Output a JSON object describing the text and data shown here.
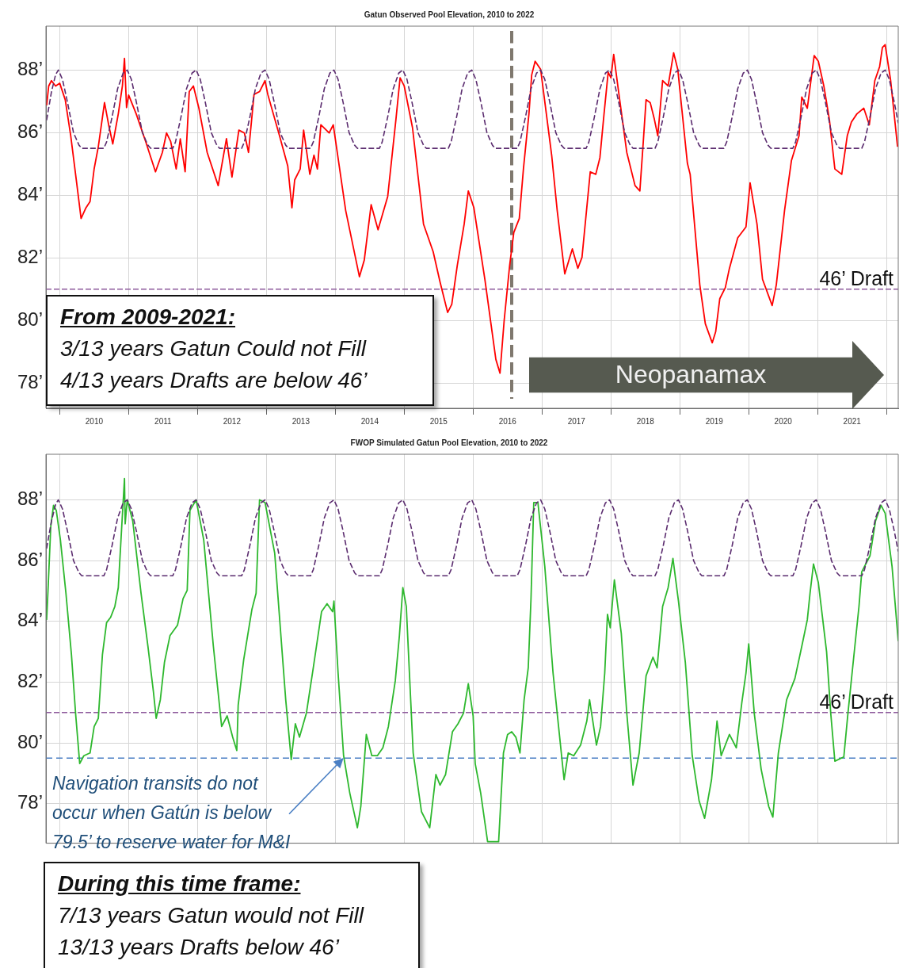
{
  "chart_data": [
    {
      "type": "line",
      "title": "Gatun Observed Pool Elevation, 2010 to 2022",
      "xlim": [
        2009.8,
        2022.17
      ],
      "ylim": [
        77.2,
        89.4
      ],
      "xticks": [
        {
          "value": 2010,
          "label": null
        },
        {
          "value": 2010.5,
          "label": "2010"
        },
        {
          "value": 2011,
          "label": null
        },
        {
          "value": 2011.5,
          "label": "2011"
        },
        {
          "value": 2012,
          "label": null
        },
        {
          "value": 2012.5,
          "label": "2012"
        },
        {
          "value": 2013,
          "label": null
        },
        {
          "value": 2013.5,
          "label": "2013"
        },
        {
          "value": 2014,
          "label": null
        },
        {
          "value": 2014.5,
          "label": "2014"
        },
        {
          "value": 2015,
          "label": null
        },
        {
          "value": 2015.5,
          "label": "2015"
        },
        {
          "value": 2016,
          "label": null
        },
        {
          "value": 2016.5,
          "label": "2016"
        },
        {
          "value": 2017,
          "label": null
        },
        {
          "value": 2017.5,
          "label": "2017"
        },
        {
          "value": 2018,
          "label": null
        },
        {
          "value": 2018.5,
          "label": "2018"
        },
        {
          "value": 2019,
          "label": null
        },
        {
          "value": 2019.5,
          "label": "2019"
        },
        {
          "value": 2020,
          "label": null
        },
        {
          "value": 2020.5,
          "label": "2020"
        },
        {
          "value": 2021,
          "label": null
        },
        {
          "value": 2021.5,
          "label": "2021"
        },
        {
          "value": 2022,
          "label": null
        }
      ],
      "yticks": [
        {
          "value": 78,
          "label": "78’"
        },
        {
          "value": 80,
          "label": "80’"
        },
        {
          "value": 82,
          "label": "82’"
        },
        {
          "value": 84,
          "label": "84’"
        },
        {
          "value": 86,
          "label": "86’"
        },
        {
          "value": 88,
          "label": "88’"
        }
      ],
      "grid": true,
      "legend": false,
      "series": [
        {
          "color": "#5b2c6f",
          "line_style": "dashed",
          "x": [
            2009.81,
            2009.88,
            2009.94,
            2009.98,
            2010.04,
            2010.11,
            2010.2,
            2010.28,
            2010.32,
            2010.64,
            2010.68,
            2010.76,
            2010.84,
            2010.92,
            2010.98,
            2011.04,
            2011.11,
            2011.2,
            2011.28,
            2011.32,
            2011.64,
            2011.68,
            2011.76,
            2011.84,
            2011.92,
            2011.98,
            2012.04,
            2012.11,
            2012.2,
            2012.28,
            2012.32,
            2012.64,
            2012.68,
            2012.76,
            2012.84,
            2012.92,
            2012.98,
            2013.04,
            2013.11,
            2013.2,
            2013.28,
            2013.32,
            2013.64,
            2013.68,
            2013.76,
            2013.84,
            2013.92,
            2013.98,
            2014.04,
            2014.11,
            2014.2,
            2014.28,
            2014.32,
            2014.64,
            2014.68,
            2014.76,
            2014.84,
            2014.92,
            2014.98,
            2015.04,
            2015.11,
            2015.2,
            2015.28,
            2015.32,
            2015.64,
            2015.68,
            2015.76,
            2015.84,
            2015.92,
            2015.98,
            2016.04,
            2016.11,
            2016.2,
            2016.28,
            2016.32,
            2016.64,
            2016.68,
            2016.76,
            2016.84,
            2016.92,
            2016.98,
            2017.04,
            2017.11,
            2017.2,
            2017.28,
            2017.32,
            2017.64,
            2017.68,
            2017.76,
            2017.84,
            2017.92,
            2017.98,
            2018.04,
            2018.11,
            2018.2,
            2018.28,
            2018.32,
            2018.64,
            2018.68,
            2018.76,
            2018.84,
            2018.92,
            2018.98,
            2019.04,
            2019.11,
            2019.2,
            2019.28,
            2019.32,
            2019.64,
            2019.68,
            2019.76,
            2019.84,
            2019.92,
            2019.98,
            2020.04,
            2020.11,
            2020.2,
            2020.28,
            2020.32,
            2020.64,
            2020.68,
            2020.76,
            2020.84,
            2020.92,
            2020.98,
            2021.04,
            2021.11,
            2021.2,
            2021.28,
            2021.32,
            2021.64,
            2021.68,
            2021.76,
            2021.84,
            2021.92,
            2021.98,
            2022.04,
            2022.11,
            2022.17
          ],
          "values": [
            86.4,
            87.3,
            87.85,
            88,
            87.7,
            87,
            86,
            85.6,
            85.5,
            85.5,
            85.7,
            86.5,
            87.4,
            87.9,
            88,
            87.7,
            87,
            86,
            85.6,
            85.5,
            85.5,
            85.7,
            86.5,
            87.4,
            87.9,
            88,
            87.7,
            87,
            86,
            85.6,
            85.5,
            85.5,
            85.7,
            86.5,
            87.4,
            87.9,
            88,
            87.7,
            87,
            86,
            85.6,
            85.5,
            85.5,
            85.7,
            86.5,
            87.4,
            87.9,
            88,
            87.7,
            87,
            86,
            85.6,
            85.5,
            85.5,
            85.7,
            86.5,
            87.4,
            87.9,
            88,
            87.7,
            87,
            86,
            85.6,
            85.5,
            85.5,
            85.7,
            86.5,
            87.4,
            87.9,
            88,
            87.7,
            87,
            86,
            85.6,
            85.5,
            85.5,
            85.7,
            86.5,
            87.4,
            87.9,
            88,
            87.7,
            87,
            86,
            85.6,
            85.5,
            85.5,
            85.7,
            86.5,
            87.4,
            87.9,
            88,
            87.7,
            87,
            86,
            85.6,
            85.5,
            85.5,
            85.7,
            86.5,
            87.4,
            87.9,
            88,
            87.7,
            87,
            86,
            85.6,
            85.5,
            85.5,
            85.7,
            86.5,
            87.4,
            87.9,
            88,
            87.7,
            87,
            86,
            85.6,
            85.5,
            85.5,
            85.7,
            86.5,
            87.4,
            87.9,
            88,
            87.7,
            87,
            86,
            85.6,
            85.5,
            85.5,
            85.7,
            86.5,
            87.4,
            87.9,
            88,
            87.7,
            87,
            86.3
          ]
        },
        {
          "color": "#ff0000",
          "x": [
            2009.81,
            2009.84,
            2009.88,
            2009.94,
            2010.0,
            2010.08,
            2010.16,
            2010.24,
            2010.31,
            2010.38,
            2010.44,
            2010.5,
            2010.56,
            2010.65,
            2010.71,
            2010.77,
            2010.85,
            2010.91,
            2010.94,
            2010.97,
            2011.0,
            2011.11,
            2011.25,
            2011.39,
            2011.49,
            2011.55,
            2011.61,
            2011.69,
            2011.75,
            2011.82,
            2011.88,
            2011.94,
            2012.02,
            2012.14,
            2012.3,
            2012.42,
            2012.5,
            2012.6,
            2012.68,
            2012.74,
            2012.82,
            2012.9,
            2012.98,
            2013.02,
            2013.19,
            2013.31,
            2013.37,
            2013.41,
            2013.49,
            2013.54,
            2013.63,
            2013.69,
            2013.74,
            2013.79,
            2013.91,
            2013.97,
            2014.15,
            2014.35,
            2014.42,
            2014.52,
            2014.62,
            2014.76,
            2014.88,
            2014.94,
            2015.0,
            2015.12,
            2015.28,
            2015.42,
            2015.52,
            2015.63,
            2015.69,
            2015.77,
            2015.87,
            2015.93,
            2016.01,
            2016.17,
            2016.33,
            2016.39,
            2016.45,
            2016.53,
            2016.59,
            2016.67,
            2016.73,
            2016.81,
            2016.85,
            2016.9,
            2016.98,
            2017.14,
            2017.22,
            2017.33,
            2017.44,
            2017.52,
            2017.58,
            2017.7,
            2017.78,
            2017.84,
            2017.9,
            2017.96,
            2018.0,
            2018.04,
            2018.1,
            2018.23,
            2018.35,
            2018.42,
            2018.47,
            2018.51,
            2018.57,
            2018.63,
            2018.68,
            2018.75,
            2018.83,
            2018.91,
            2018.97,
            2019.11,
            2019.15,
            2019.29,
            2019.37,
            2019.47,
            2019.52,
            2019.58,
            2019.66,
            2019.72,
            2019.84,
            2019.96,
            2020.02,
            2020.12,
            2020.2,
            2020.34,
            2020.4,
            2020.52,
            2020.62,
            2020.73,
            2020.77,
            2020.85,
            2020.95,
            2021.01,
            2021.09,
            2021.17,
            2021.25,
            2021.35,
            2021.43,
            2021.49,
            2021.57,
            2021.67,
            2021.75,
            2021.83,
            2021.9,
            2021.94,
            2021.98,
            2022.06,
            2022.16
          ],
          "values": [
            86.87,
            87.49,
            87.66,
            87.49,
            87.58,
            87.05,
            85.9,
            84.5,
            83.26,
            83.6,
            83.8,
            84.85,
            85.55,
            86.96,
            86.25,
            85.64,
            86.6,
            87.5,
            88.37,
            86.8,
            87.2,
            86.6,
            85.7,
            84.75,
            85.37,
            85.99,
            85.72,
            84.84,
            85.8,
            84.75,
            87.31,
            87.49,
            86.78,
            85.37,
            84.31,
            85.81,
            84.58,
            86.08,
            85.99,
            85.37,
            87.22,
            87.31,
            87.66,
            87.22,
            85.9,
            84.93,
            83.6,
            84.49,
            84.84,
            86.08,
            84.67,
            85.28,
            84.84,
            86.25,
            85.99,
            86.25,
            83.52,
            81.4,
            81.93,
            83.7,
            82.9,
            83.96,
            86.43,
            87.75,
            87.49,
            86.16,
            83.08,
            82.2,
            81.23,
            80.26,
            80.52,
            81.76,
            83.08,
            84.14,
            83.61,
            81.32,
            78.76,
            78.32,
            79.99,
            81.76,
            82.81,
            83.26,
            84.84,
            86.6,
            87.84,
            88.28,
            88.02,
            85.28,
            83.52,
            81.49,
            82.29,
            81.67,
            82.02,
            84.75,
            84.67,
            85.2,
            86.6,
            87.93,
            87.75,
            88.5,
            87.49,
            85.37,
            84.31,
            84.14,
            85.72,
            87.05,
            86.96,
            86.43,
            85.9,
            87.66,
            87.49,
            88.55,
            88.02,
            85.02,
            84.67,
            81.14,
            79.9,
            79.29,
            79.64,
            80.7,
            81.05,
            81.67,
            82.64,
            82.99,
            84.4,
            83.08,
            81.32,
            80.48,
            81.14,
            83.52,
            85.11,
            85.9,
            87.14,
            86.78,
            88.46,
            88.28,
            87.49,
            86.43,
            84.84,
            84.67,
            85.9,
            86.34,
            86.6,
            86.78,
            86.25,
            87.66,
            88.11,
            88.72,
            88.81,
            87.66,
            85.55
          ]
        }
      ],
      "ref_lines": [
        {
          "axis": "y",
          "value": 81,
          "label": "46’ Draft",
          "color": "#8e5a9c",
          "line_style": "dashed"
        },
        {
          "axis": "x",
          "value": 2016.56,
          "color": "#7f786e",
          "line_style": "dashed"
        }
      ],
      "annotations": [
        "From 2009-2021:",
        "3/13 years Gatun Could not Fill",
        "4/13 years Drafts are below 46’",
        "Neopanamax"
      ]
    },
    {
      "type": "line",
      "title": "FWOP Simulated Gatun Pool Elevation, 2010 to 2022",
      "xlim": [
        2009.8,
        2022.17
      ],
      "ylim": [
        76.7,
        89.5
      ],
      "xticks": [
        {
          "value": 2010,
          "label": null
        },
        {
          "value": 2011,
          "label": null
        },
        {
          "value": 2012,
          "label": null
        },
        {
          "value": 2013,
          "label": null
        },
        {
          "value": 2014,
          "label": null
        },
        {
          "value": 2015,
          "label": null
        },
        {
          "value": 2016,
          "label": null
        },
        {
          "value": 2017,
          "label": null
        },
        {
          "value": 2018,
          "label": null
        },
        {
          "value": 2019,
          "label": null
        },
        {
          "value": 2020,
          "label": null
        },
        {
          "value": 2021,
          "label": null
        },
        {
          "value": 2022,
          "label": null
        }
      ],
      "yticks": [
        {
          "value": 78,
          "label": "78’"
        },
        {
          "value": 80,
          "label": "80’"
        },
        {
          "value": 82,
          "label": "82’"
        },
        {
          "value": 84,
          "label": "84’"
        },
        {
          "value": 86,
          "label": "86’"
        },
        {
          "value": 88,
          "label": "88’"
        }
      ],
      "tick_labels": "y",
      "grid": true,
      "legend": false,
      "series": [
        {
          "color": "#5b2c6f",
          "line_style": "dashed",
          "x": [
            2009.81,
            2009.88,
            2009.94,
            2009.98,
            2010.04,
            2010.11,
            2010.2,
            2010.28,
            2010.32,
            2010.64,
            2010.68,
            2010.76,
            2010.84,
            2010.92,
            2010.98,
            2011.04,
            2011.11,
            2011.2,
            2011.28,
            2011.32,
            2011.64,
            2011.68,
            2011.76,
            2011.84,
            2011.92,
            2011.98,
            2012.04,
            2012.11,
            2012.2,
            2012.28,
            2012.32,
            2012.64,
            2012.68,
            2012.76,
            2012.84,
            2012.92,
            2012.98,
            2013.04,
            2013.11,
            2013.2,
            2013.28,
            2013.32,
            2013.64,
            2013.68,
            2013.76,
            2013.84,
            2013.92,
            2013.98,
            2014.04,
            2014.11,
            2014.2,
            2014.28,
            2014.32,
            2014.64,
            2014.68,
            2014.76,
            2014.84,
            2014.92,
            2014.98,
            2015.04,
            2015.11,
            2015.2,
            2015.28,
            2015.32,
            2015.64,
            2015.68,
            2015.76,
            2015.84,
            2015.92,
            2015.98,
            2016.04,
            2016.11,
            2016.2,
            2016.28,
            2016.32,
            2016.64,
            2016.68,
            2016.76,
            2016.84,
            2016.92,
            2016.98,
            2017.04,
            2017.11,
            2017.2,
            2017.28,
            2017.32,
            2017.64,
            2017.68,
            2017.76,
            2017.84,
            2017.92,
            2017.98,
            2018.04,
            2018.11,
            2018.2,
            2018.28,
            2018.32,
            2018.64,
            2018.68,
            2018.76,
            2018.84,
            2018.92,
            2018.98,
            2019.04,
            2019.11,
            2019.2,
            2019.28,
            2019.32,
            2019.64,
            2019.68,
            2019.76,
            2019.84,
            2019.92,
            2019.98,
            2020.04,
            2020.11,
            2020.2,
            2020.28,
            2020.32,
            2020.64,
            2020.68,
            2020.76,
            2020.84,
            2020.92,
            2020.98,
            2021.04,
            2021.11,
            2021.2,
            2021.28,
            2021.32,
            2021.64,
            2021.68,
            2021.76,
            2021.84,
            2021.92,
            2021.98,
            2022.04,
            2022.11,
            2022.17
          ],
          "values": [
            86.4,
            87.3,
            87.85,
            88,
            87.7,
            87,
            86,
            85.6,
            85.5,
            85.5,
            85.7,
            86.5,
            87.4,
            87.9,
            88,
            87.7,
            87,
            86,
            85.6,
            85.5,
            85.5,
            85.7,
            86.5,
            87.4,
            87.9,
            88,
            87.7,
            87,
            86,
            85.6,
            85.5,
            85.5,
            85.7,
            86.5,
            87.4,
            87.9,
            88,
            87.7,
            87,
            86,
            85.6,
            85.5,
            85.5,
            85.7,
            86.5,
            87.4,
            87.9,
            88,
            87.7,
            87,
            86,
            85.6,
            85.5,
            85.5,
            85.7,
            86.5,
            87.4,
            87.9,
            88,
            87.7,
            87,
            86,
            85.6,
            85.5,
            85.5,
            85.7,
            86.5,
            87.4,
            87.9,
            88,
            87.7,
            87,
            86,
            85.6,
            85.5,
            85.5,
            85.7,
            86.5,
            87.4,
            87.9,
            88,
            87.7,
            87,
            86,
            85.6,
            85.5,
            85.5,
            85.7,
            86.5,
            87.4,
            87.9,
            88,
            87.7,
            87,
            86,
            85.6,
            85.5,
            85.5,
            85.7,
            86.5,
            87.4,
            87.9,
            88,
            87.7,
            87,
            86,
            85.6,
            85.5,
            85.5,
            85.7,
            86.5,
            87.4,
            87.9,
            88,
            87.7,
            87,
            86,
            85.6,
            85.5,
            85.5,
            85.7,
            86.5,
            87.4,
            87.9,
            88,
            87.7,
            87,
            86,
            85.6,
            85.5,
            85.5,
            85.7,
            86.5,
            87.4,
            87.9,
            88,
            87.7,
            87,
            86.3
          ]
        },
        {
          "color": "#2eb82e",
          "x": [
            2009.81,
            2009.83,
            2009.87,
            2009.91,
            2009.95,
            2010.01,
            2010.09,
            2010.17,
            2010.23,
            2010.29,
            2010.35,
            2010.44,
            2010.5,
            2010.56,
            2010.62,
            2010.68,
            2010.74,
            2010.8,
            2010.85,
            2010.9,
            2010.94,
            2010.95,
            2010.98,
            2011.06,
            2011.18,
            2011.28,
            2011.36,
            2011.4,
            2011.46,
            2011.52,
            2011.6,
            2011.71,
            2011.79,
            2011.85,
            2011.89,
            2011.98,
            2012.09,
            2012.23,
            2012.35,
            2012.43,
            2012.51,
            2012.57,
            2012.59,
            2012.67,
            2012.79,
            2012.85,
            2012.9,
            2012.98,
            2013.12,
            2013.28,
            2013.36,
            2013.42,
            2013.48,
            2013.58,
            2013.68,
            2013.8,
            2013.88,
            2013.96,
            2013.98,
            2014.04,
            2014.12,
            2014.21,
            2014.32,
            2014.37,
            2014.45,
            2014.53,
            2014.61,
            2014.69,
            2014.77,
            2014.87,
            2014.93,
            2014.98,
            2015.03,
            2015.13,
            2015.25,
            2015.37,
            2015.46,
            2015.52,
            2015.6,
            2015.7,
            2015.78,
            2015.86,
            2015.93,
            2016.0,
            2016.03,
            2016.11,
            2016.21,
            2016.37,
            2016.44,
            2016.5,
            2016.56,
            2016.62,
            2016.68,
            2016.74,
            2016.8,
            2016.84,
            2016.88,
            2016.94,
            2017.04,
            2017.16,
            2017.24,
            2017.32,
            2017.38,
            2017.46,
            2017.56,
            2017.65,
            2017.69,
            2017.79,
            2017.85,
            2017.91,
            2017.95,
            2017.99,
            2018.05,
            2018.15,
            2018.23,
            2018.32,
            2018.41,
            2018.51,
            2018.61,
            2018.67,
            2018.75,
            2018.83,
            2018.9,
            2018.98,
            2019.08,
            2019.18,
            2019.28,
            2019.36,
            2019.46,
            2019.54,
            2019.6,
            2019.72,
            2019.82,
            2019.9,
            2019.96,
            2020.0,
            2020.08,
            2020.18,
            2020.29,
            2020.35,
            2020.43,
            2020.55,
            2020.67,
            2020.77,
            2020.85,
            2020.89,
            2020.94,
            2021.01,
            2021.13,
            2021.19,
            2021.25,
            2021.38,
            2021.44,
            2021.54,
            2021.6,
            2021.64,
            2021.76,
            2021.84,
            2021.92,
            2021.98,
            2022.08,
            2022.17
          ],
          "values": [
            84.05,
            85.02,
            87.12,
            87.82,
            87.65,
            86.68,
            84.93,
            82.91,
            80.98,
            79.32,
            79.58,
            79.67,
            80.54,
            80.81,
            82.91,
            83.96,
            84.14,
            84.49,
            85.11,
            87.12,
            88.7,
            87.21,
            88.0,
            87.3,
            84.93,
            83.18,
            81.68,
            80.81,
            81.42,
            82.65,
            83.53,
            83.88,
            84.75,
            85.02,
            87.65,
            88.0,
            86.68,
            83.18,
            80.54,
            80.89,
            80.19,
            79.75,
            81.24,
            82.74,
            84.4,
            84.93,
            88.0,
            87.91,
            86.25,
            81.42,
            79.45,
            80.63,
            80.19,
            80.98,
            82.47,
            84.32,
            84.58,
            84.32,
            84.67,
            82.3,
            79.58,
            78.35,
            77.21,
            77.91,
            80.28,
            79.58,
            79.58,
            79.84,
            80.54,
            82.04,
            83.53,
            85.11,
            84.49,
            79.67,
            77.74,
            77.21,
            78.96,
            78.61,
            78.96,
            80.37,
            80.63,
            80.98,
            81.95,
            80.89,
            79.32,
            78.35,
            76.75,
            76.75,
            79.67,
            80.28,
            80.37,
            80.19,
            79.67,
            81.42,
            82.47,
            84.75,
            87.91,
            87.91,
            85.81,
            82.3,
            80.54,
            78.79,
            79.67,
            79.58,
            79.93,
            80.72,
            81.42,
            79.93,
            80.54,
            82.3,
            84.23,
            83.79,
            85.37,
            83.61,
            80.98,
            78.61,
            79.67,
            82.21,
            82.82,
            82.47,
            84.49,
            85.11,
            86.07,
            84.67,
            82.65,
            79.58,
            78.09,
            77.52,
            78.79,
            80.72,
            79.58,
            80.28,
            79.84,
            81.33,
            82.3,
            83.26,
            80.98,
            79.14,
            77.91,
            77.56,
            79.67,
            81.42,
            82.12,
            83.18,
            84.05,
            84.93,
            85.89,
            85.28,
            83.0,
            80.98,
            79.4,
            79.54,
            80.98,
            83.18,
            84.49,
            85.63,
            86.16,
            87.3,
            87.82,
            87.56,
            85.81,
            83.35
          ]
        }
      ],
      "ref_lines": [
        {
          "axis": "y",
          "value": 81,
          "label": "46’ Draft",
          "color": "#8e5a9c",
          "line_style": "dashed"
        },
        {
          "axis": "y",
          "value": 79.5,
          "color": "#4a7fc4",
          "line_style": "dashed"
        }
      ],
      "annotations": [
        {
          "text": "Navigation transits do not\noccur when Gatún is below\n79.5’ to reserve water for M&I",
          "x": 2014.12,
          "y": 79.5
        },
        "During this time frame:",
        "7/13 years Gatun would not Fill",
        "13/13 years Drafts below 46’"
      ]
    }
  ]
}
